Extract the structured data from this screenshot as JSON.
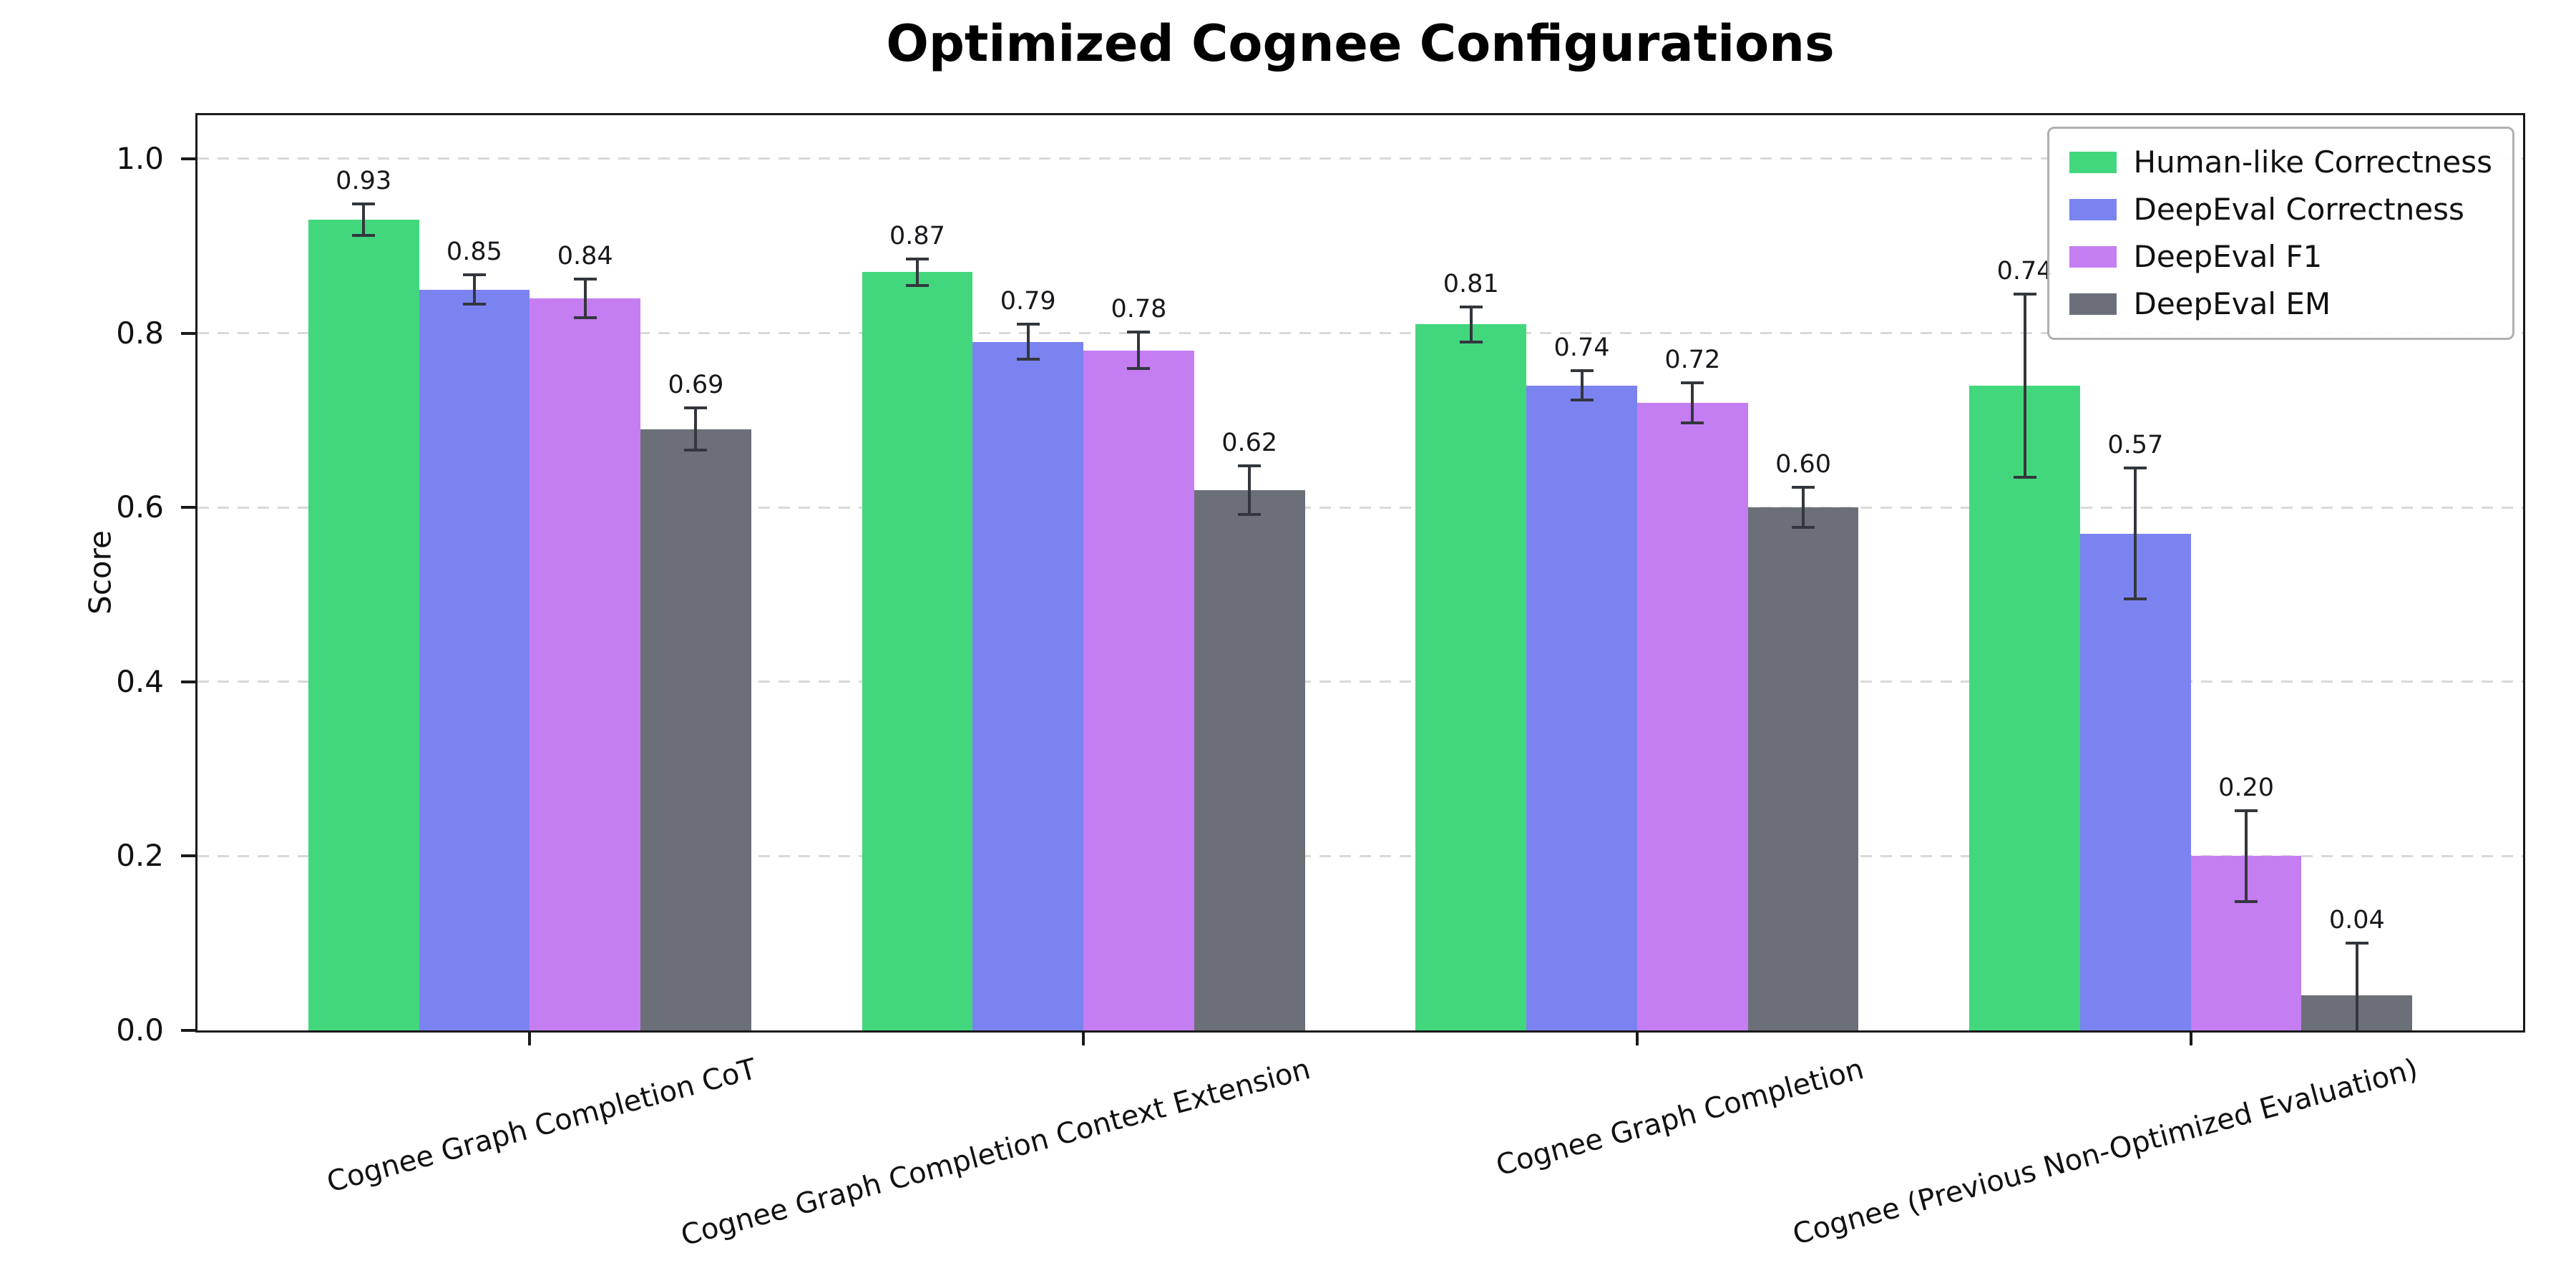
{
  "chart_data": {
    "type": "bar",
    "title": "Optimized Cognee Configurations",
    "xlabel": "",
    "ylabel": "Score",
    "ylim": [
      0,
      1.05
    ],
    "yticks": [
      0.0,
      0.2,
      0.4,
      0.6,
      0.8,
      1.0
    ],
    "grid": "horizontal-dashed",
    "legend_position": "upper-right",
    "error_bars": true,
    "colors": {
      "spine": "#1a1a1a",
      "gridline": "#d9d9d9",
      "error_bar": "#33373d",
      "background": "#ffffff"
    },
    "categories": [
      "Cognee Graph Completion CoT",
      "Cognee Graph Completion Context Extension",
      "Cognee Graph Completion",
      "Cognee (Previous Non-Optimized Evaluation)"
    ],
    "series": [
      {
        "name": "Human-like Correctness",
        "color": "#42d77d",
        "values": [
          0.93,
          0.87,
          0.81,
          0.74
        ],
        "errors": [
          0.018,
          0.015,
          0.02,
          0.105
        ]
      },
      {
        "name": "DeepEval Correctness",
        "color": "#7b83f0",
        "values": [
          0.85,
          0.79,
          0.74,
          0.57
        ],
        "errors": [
          0.017,
          0.02,
          0.017,
          0.075
        ]
      },
      {
        "name": "DeepEval F1",
        "color": "#c47ef2",
        "values": [
          0.84,
          0.78,
          0.72,
          0.2
        ],
        "errors": [
          0.022,
          0.021,
          0.023,
          0.052
        ]
      },
      {
        "name": "DeepEval EM",
        "color": "#6b7078",
        "values": [
          0.69,
          0.62,
          0.6,
          0.04
        ],
        "errors": [
          0.024,
          0.028,
          0.023,
          0.06
        ]
      }
    ]
  }
}
